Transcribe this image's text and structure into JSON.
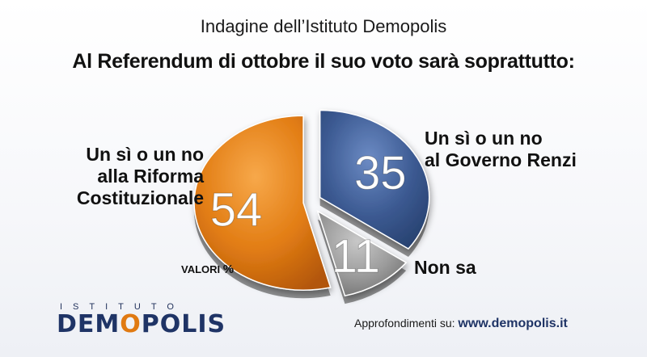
{
  "header": {
    "subtitle": "Indagine dell’Istituto Demopolis",
    "title": "Al Referendum di ottobre il suo voto sarà soprattutto:"
  },
  "chart_data": {
    "type": "pie",
    "title": "Al Referendum di ottobre il suo voto sarà soprattutto:",
    "unit_note": "VALORI %",
    "slices": [
      {
        "label": [
          "Un sì o un no",
          "al Governo Renzi"
        ],
        "value": 35,
        "color": "#3c5a92"
      },
      {
        "label": [
          "Non sa"
        ],
        "value": 11,
        "color": "#9a9a9a"
      },
      {
        "label": [
          "Un sì o un no",
          "alla Riforma",
          "Costituzionale"
        ],
        "value": 54,
        "color": "#e0780f"
      }
    ]
  },
  "valori": {
    "text": "VALORI",
    "pct": "%"
  },
  "logo": {
    "top": "ISTITUTO",
    "name_pre": "DEM",
    "name_o": "O",
    "name_post": "POLIS"
  },
  "footer": {
    "prefix": "Approfondimenti su:",
    "url": "www.demopolis.it"
  }
}
